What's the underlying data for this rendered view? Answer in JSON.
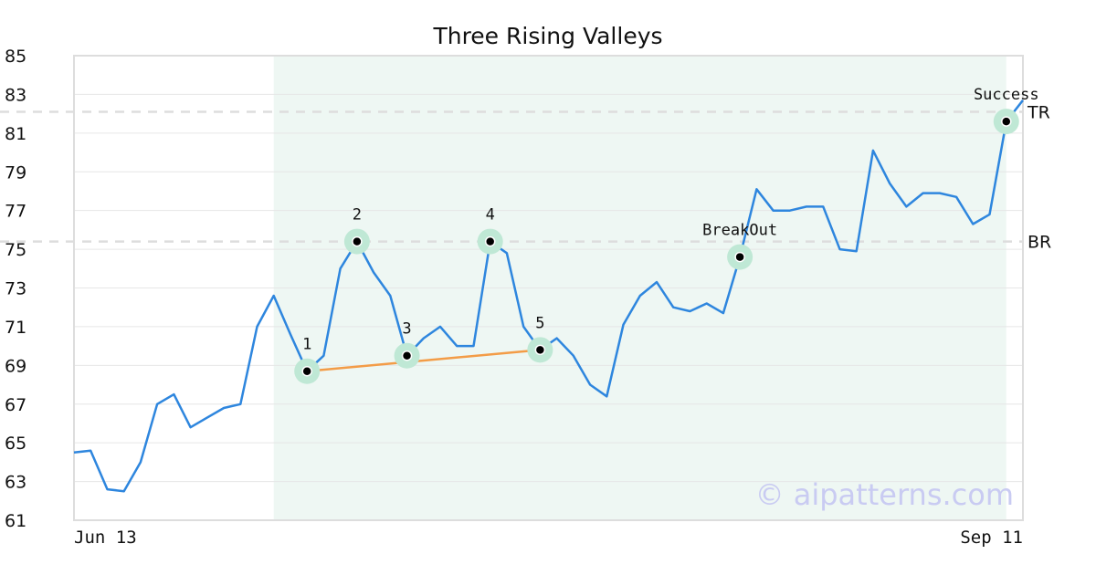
{
  "chart_data": {
    "type": "line",
    "title": "Three Rising Valleys",
    "xlabel": "",
    "ylabel": "",
    "ylim": [
      61,
      85
    ],
    "yticks": [
      61,
      63,
      65,
      67,
      69,
      71,
      73,
      75,
      77,
      79,
      81,
      83,
      85
    ],
    "x_tick_labels": [
      "Jun 13",
      "Sep 11"
    ],
    "grid": true,
    "colors": {
      "line": "#2e86de",
      "trendline": "#f39c47",
      "highlight": "#eef7f3",
      "marker_halo": "#bfe8d5",
      "level": "#dddddd"
    },
    "series": [
      {
        "values": [
          64.5,
          64.6,
          62.6,
          62.5,
          64.0,
          67.0,
          67.5,
          65.8,
          66.3,
          66.8,
          67.0,
          71.0,
          72.6,
          70.6,
          68.7,
          69.5,
          74.0,
          75.4,
          73.8,
          72.6,
          69.5,
          70.4,
          71.0,
          70.0,
          70.0,
          75.4,
          74.8,
          71.0,
          69.8,
          70.4,
          69.5,
          68.0,
          67.4,
          71.1,
          72.6,
          73.3,
          72.0,
          71.8,
          72.2,
          71.7,
          74.6,
          78.1,
          77.0,
          77.0,
          77.2,
          77.2,
          75.0,
          74.9,
          80.1,
          78.4,
          77.2,
          77.9,
          77.9,
          77.7,
          76.3,
          76.8,
          81.6,
          82.7
        ]
      }
    ],
    "highlight_range": [
      12,
      56
    ],
    "levels": [
      {
        "label": "TR",
        "value": 82.1
      },
      {
        "label": "BR",
        "value": 75.4
      }
    ],
    "markers": [
      {
        "label": "1",
        "index": 14,
        "value": 68.7
      },
      {
        "label": "2",
        "index": 17,
        "value": 75.4
      },
      {
        "label": "3",
        "index": 20,
        "value": 69.5
      },
      {
        "label": "4",
        "index": 25,
        "value": 75.4
      },
      {
        "label": "5",
        "index": 28,
        "value": 69.8
      },
      {
        "label": "BreakOut",
        "index": 40,
        "value": 74.6
      },
      {
        "label": "Success",
        "index": 56,
        "value": 81.6
      }
    ],
    "trendline": [
      {
        "index": 14,
        "value": 68.7
      },
      {
        "index": 28,
        "value": 69.8
      }
    ]
  },
  "watermark": "© aipatterns.com"
}
